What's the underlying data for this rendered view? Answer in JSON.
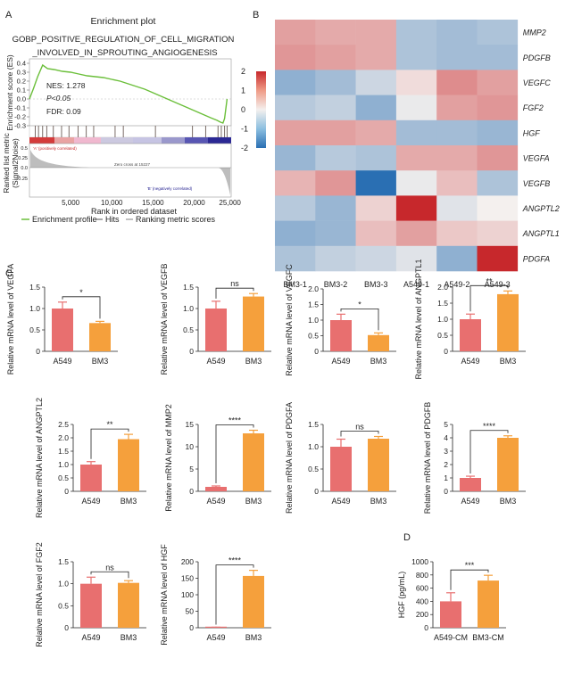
{
  "panel_labels": {
    "A": "A",
    "B": "B",
    "C": "C",
    "D": "D"
  },
  "colors": {
    "control": "#e86f6f",
    "bm3": "#f5a03c",
    "gsea_curve": "#6bbf3a",
    "heat_low": "#2a6fb3",
    "heat_mid": "#f4f0ee",
    "heat_high": "#c7282c"
  },
  "gsea": {
    "title": "Enrichment plot",
    "geneset_line1": "GOBP_POSITIVE_REGULATION_OF_CELL_MIGRATION",
    "geneset_line2": "_INVOLVED_IN_SPROUTING_ANGIOGENESIS",
    "ylabel_es": "Enrichment score (ES)",
    "ylabel_rank_1": "Ranked list metric",
    "ylabel_rank_2": "(Signal2Noise)",
    "xlabel": "Rank in ordered dataset",
    "nes": "NES: 1.278",
    "p": "P<0.05",
    "fdr": "FDR: 0.09",
    "pos_corr": "'A' (positively correlated)",
    "neg_corr": "'B' (negatively correlated)",
    "zero_cross": "Zero cross at 15227",
    "legend": {
      "curve": "Enrichment profile",
      "hits": "Hits",
      "ranking": "Ranking metric scores"
    },
    "es_ticks": [
      "0.4",
      "0.3",
      "0.2",
      "0.1",
      "0.0",
      "-0.1",
      "-0.2",
      "-0.3"
    ],
    "rank_ticks": [
      "0.5",
      "0.25",
      "0.0",
      "-0.25"
    ],
    "x_ticks": [
      "5,000",
      "10,000",
      "15,000",
      "20,000",
      "25,000"
    ]
  },
  "chart_data": [
    {
      "type": "line",
      "title": "Enrichment plot",
      "xlabel": "Rank in ordered dataset",
      "ylabel": "Enrichment score (ES)",
      "xlim": [
        0,
        24500
      ],
      "ylim": [
        -0.3,
        0.45
      ],
      "x": [
        0,
        500,
        1000,
        1600,
        2200,
        3000,
        4000,
        5000,
        6000,
        7000,
        8000,
        9000,
        10000,
        11000,
        12000,
        13000,
        14000,
        15000,
        16000,
        17000,
        18000,
        19000,
        20000,
        21000,
        22000,
        22800,
        23200,
        23500,
        23700,
        24000
      ],
      "y": [
        0.0,
        0.12,
        0.25,
        0.38,
        0.34,
        0.33,
        0.31,
        0.3,
        0.28,
        0.26,
        0.25,
        0.24,
        0.22,
        0.2,
        0.17,
        0.14,
        0.11,
        0.07,
        0.03,
        -0.01,
        -0.05,
        -0.09,
        -0.13,
        -0.17,
        -0.21,
        -0.24,
        -0.26,
        -0.27,
        -0.22,
        0.0
      ],
      "hit_ranks": [
        700,
        1100,
        1600,
        2100,
        2900,
        3900,
        4800,
        5900,
        6900,
        7800,
        10400,
        11400,
        15300,
        19800,
        21400,
        22900,
        23300,
        23700,
        24000
      ]
    },
    {
      "type": "heatmap",
      "columns": [
        "BM3-1",
        "BM3-2",
        "BM3-3",
        "A549-1",
        "A549-2",
        "A549-3"
      ],
      "rows": [
        "MMP2",
        "PDGFB",
        "VEGFC",
        "FGF2",
        "HGF",
        "VEGFA",
        "VEGFB",
        "ANGPTL2",
        "ANGPTL1",
        "PDGFA"
      ],
      "values": [
        [
          0.8,
          0.7,
          0.7,
          -0.7,
          -0.8,
          -0.7
        ],
        [
          0.9,
          0.8,
          0.7,
          -0.7,
          -0.8,
          -0.8
        ],
        [
          -1.0,
          -0.8,
          -0.4,
          0.2,
          1.0,
          0.8
        ],
        [
          -0.6,
          -0.5,
          -1.0,
          -0.1,
          0.8,
          0.9
        ],
        [
          0.8,
          0.8,
          0.7,
          -0.8,
          -0.8,
          -0.9
        ],
        [
          -0.9,
          -0.6,
          -0.7,
          0.7,
          0.7,
          0.9
        ],
        [
          0.6,
          0.9,
          -2.0,
          -0.1,
          0.5,
          -0.7
        ],
        [
          -0.6,
          -0.9,
          0.3,
          2.0,
          -0.2,
          0.0
        ],
        [
          -1.0,
          -0.9,
          0.5,
          0.8,
          0.4,
          0.3
        ],
        [
          -0.7,
          -0.5,
          -0.4,
          -0.2,
          -1.0,
          2.0
        ]
      ],
      "colorbar": {
        "range": [
          -2,
          2
        ],
        "ticks": [
          "2",
          "1",
          "0",
          "-1",
          "-2"
        ]
      }
    },
    {
      "type": "bar",
      "ylabel": "Relative mRNA level of VEGFA",
      "categories": [
        "A549",
        "BM3"
      ],
      "values": [
        1.0,
        0.66
      ],
      "errors": [
        0.15,
        0.04
      ],
      "ylim": [
        0,
        1.5
      ],
      "yticks": [
        "0",
        "0.5",
        "1.0",
        "1.5"
      ],
      "significance": "*"
    },
    {
      "type": "bar",
      "ylabel": "Relative mRNA level of VEGFB",
      "categories": [
        "A549",
        "BM3"
      ],
      "values": [
        1.0,
        1.28
      ],
      "errors": [
        0.17,
        0.07
      ],
      "ylim": [
        0,
        1.5
      ],
      "yticks": [
        "0",
        "0.5",
        "1.0",
        "1.5"
      ],
      "significance": "ns"
    },
    {
      "type": "bar",
      "ylabel": "Relative mRNA level of VEGFC",
      "categories": [
        "A549",
        "BM3"
      ],
      "values": [
        1.0,
        0.52
      ],
      "errors": [
        0.19,
        0.07
      ],
      "ylim": [
        0,
        2.0
      ],
      "yticks": [
        "0",
        "0.5",
        "1.0",
        "1.5",
        "2.0"
      ],
      "significance": "*"
    },
    {
      "type": "bar",
      "ylabel": "Relative mRNA level of ANGPTL1",
      "categories": [
        "A549",
        "BM3"
      ],
      "values": [
        1.0,
        1.78
      ],
      "errors": [
        0.16,
        0.1
      ],
      "ylim": [
        0,
        2.0
      ],
      "yticks": [
        "0",
        "0.5",
        "1.0",
        "1.5",
        "2.0"
      ],
      "significance": "**"
    },
    {
      "type": "bar",
      "ylabel": "Relative mRNA level of ANGPTL2",
      "categories": [
        "A549",
        "BM3"
      ],
      "values": [
        1.0,
        1.95
      ],
      "errors": [
        0.11,
        0.18
      ],
      "ylim": [
        0,
        2.5
      ],
      "yticks": [
        "0",
        "0.5",
        "1.0",
        "1.5",
        "2.0",
        "2.5"
      ],
      "significance": "**"
    },
    {
      "type": "bar",
      "ylabel": "Relative mRNA level of MMP2",
      "categories": [
        "A549",
        "BM3"
      ],
      "values": [
        1.0,
        13.0
      ],
      "errors": [
        0.2,
        0.7
      ],
      "ylim": [
        0,
        15
      ],
      "yticks": [
        "0",
        "5",
        "10",
        "15"
      ],
      "significance": "****"
    },
    {
      "type": "bar",
      "ylabel": "Relative mRNA level of PDGFA",
      "categories": [
        "A549",
        "BM3"
      ],
      "values": [
        1.0,
        1.18
      ],
      "errors": [
        0.17,
        0.05
      ],
      "ylim": [
        0,
        1.5
      ],
      "yticks": [
        "0",
        "0.5",
        "1.0",
        "1.5"
      ],
      "significance": "ns"
    },
    {
      "type": "bar",
      "ylabel": "Relative mRNA level of PDGFB",
      "categories": [
        "A549",
        "BM3"
      ],
      "values": [
        1.0,
        4.0
      ],
      "errors": [
        0.13,
        0.15
      ],
      "ylim": [
        0,
        5
      ],
      "yticks": [
        "0",
        "1",
        "2",
        "3",
        "4",
        "5"
      ],
      "significance": "****"
    },
    {
      "type": "bar",
      "ylabel": "Relative mRNA level of FGF2",
      "categories": [
        "A549",
        "BM3"
      ],
      "values": [
        1.0,
        1.02
      ],
      "errors": [
        0.15,
        0.05
      ],
      "ylim": [
        0,
        1.5
      ],
      "yticks": [
        "0",
        "0.5",
        "1.0",
        "1.5"
      ],
      "significance": "ns"
    },
    {
      "type": "bar",
      "ylabel": "Relative mRNA level of HGF",
      "categories": [
        "A549",
        "BM3"
      ],
      "values": [
        1.0,
        157
      ],
      "errors": [
        0.5,
        17
      ],
      "ylim": [
        0,
        200
      ],
      "yticks": [
        "0",
        "50",
        "100",
        "150",
        "200"
      ],
      "significance": "****"
    },
    {
      "type": "bar",
      "ylabel": "HGF (pg/mL)",
      "categories": [
        "A549-CM",
        "BM3-CM"
      ],
      "values": [
        400,
        715
      ],
      "errors": [
        130,
        80
      ],
      "ylim": [
        0,
        1000
      ],
      "yticks": [
        "0",
        "200",
        "400",
        "600",
        "800",
        "1000"
      ],
      "significance": "***"
    }
  ]
}
